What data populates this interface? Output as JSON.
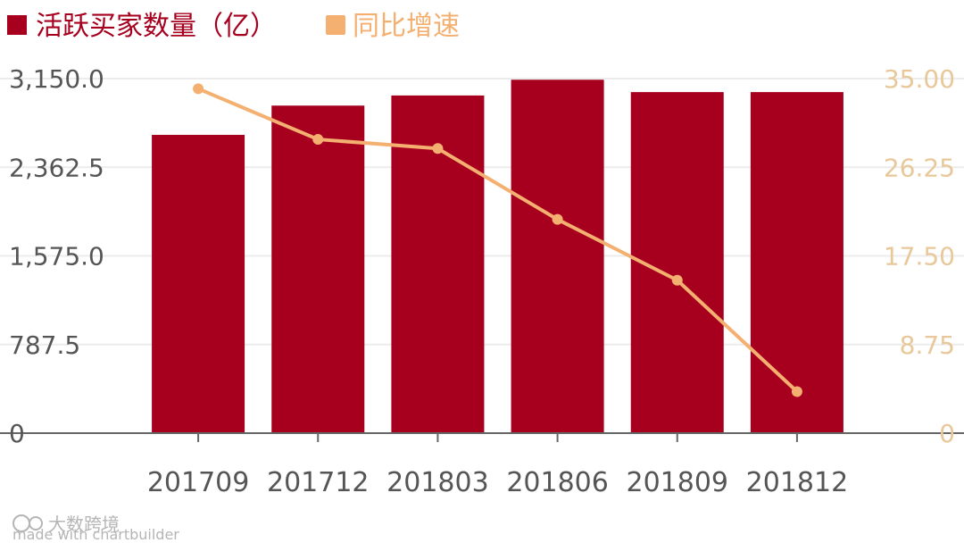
{
  "colors": {
    "bar": "#a6001e",
    "line": "#f4b070",
    "grid": "#ececec",
    "axis": "#666666",
    "left_tick": "#555555",
    "right_tick": "#e8c89a",
    "x_tick": "#555555",
    "watermark": "#b5b5b5"
  },
  "legend": {
    "bar_label": "活跃买家数量（亿）",
    "line_label": "同比增速"
  },
  "watermark": {
    "brand": "大数跨境",
    "made_with": "made with chartbuilder"
  },
  "chart_data": {
    "type": "bar",
    "categories": [
      "201709",
      "201712",
      "201803",
      "201806",
      "201809",
      "201812"
    ],
    "series": [
      {
        "name": "活跃买家数量（亿）",
        "type": "bar",
        "axis": "left",
        "values": [
          2650,
          2910,
          3000,
          3140,
          3030,
          3030
        ]
      },
      {
        "name": "同比增速",
        "type": "line",
        "axis": "right",
        "values": [
          34.0,
          29.0,
          28.1,
          21.1,
          15.1,
          4.1
        ]
      }
    ],
    "y_left": {
      "ylim": [
        0,
        3150
      ],
      "ticks": [
        0,
        787.5,
        1575,
        2362.5,
        3150
      ],
      "tick_labels": [
        "0",
        "787.5",
        "1,575.0",
        "2,362.5",
        "3,150.0"
      ]
    },
    "y_right": {
      "ylim": [
        0,
        35
      ],
      "ticks": [
        0,
        8.75,
        17.5,
        26.25,
        35
      ],
      "tick_labels": [
        "0",
        "8.75",
        "17.50",
        "26.25",
        "35.00"
      ]
    },
    "grid": true,
    "legend_position": "top-left"
  }
}
